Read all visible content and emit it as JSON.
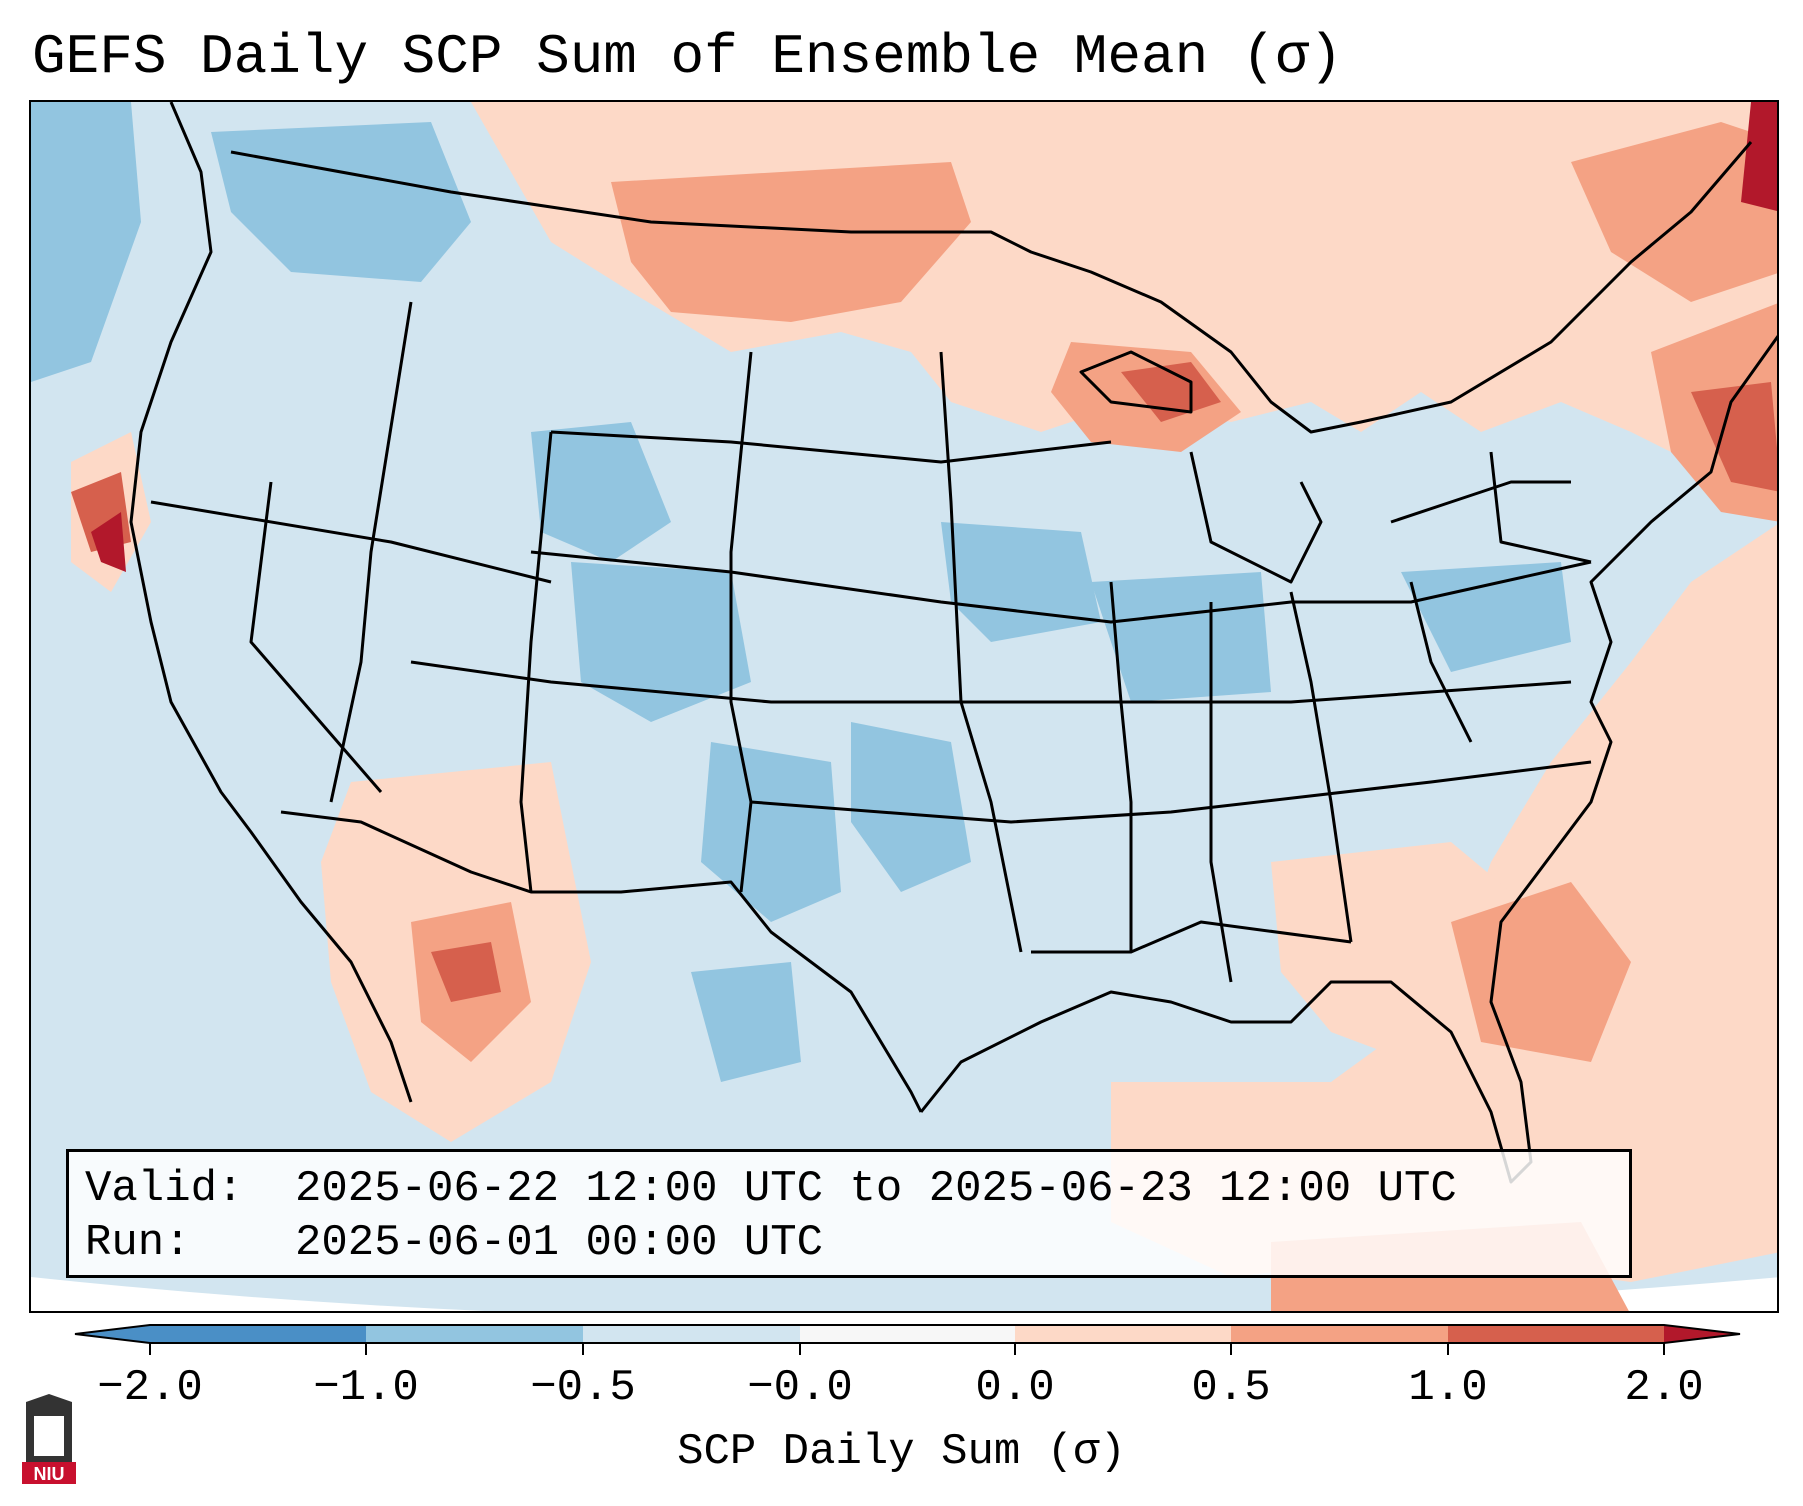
{
  "title": "GEFS Daily SCP Sum of Ensemble Mean (σ)",
  "info": {
    "valid_label": "Valid:",
    "valid_value": "2025-06-22 12:00 UTC to 2025-06-23 12:00 UTC",
    "run_label": "Run:",
    "run_value": "2025-06-01 00:00 UTC"
  },
  "colorbar": {
    "label": "SCP Daily Sum (σ)",
    "ticks": [
      "−2.0",
      "−1.0",
      "−0.5",
      "−0.0",
      "0.0",
      "0.5",
      "1.0",
      "2.0"
    ],
    "colors": [
      "#4a8fc6",
      "#92c5e0",
      "#d2e5f0",
      "#f7f7f7",
      "#fdd9c7",
      "#f4a284",
      "#d6604d",
      "#b2182b"
    ]
  },
  "map": {
    "region": "Continental United States",
    "boundaries": [
      "coastlines",
      "state-borders",
      "country-borders"
    ]
  },
  "logo": {
    "text": "NIU",
    "color": "#c8102e"
  }
}
